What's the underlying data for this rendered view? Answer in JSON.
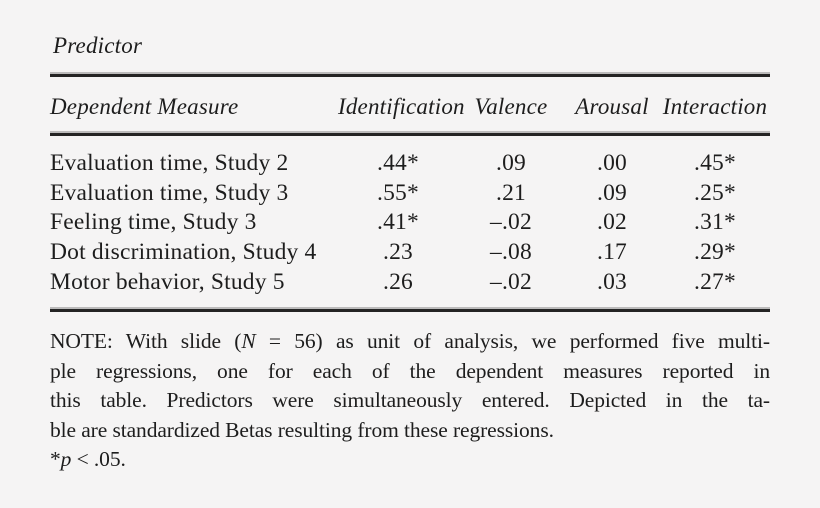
{
  "page": {
    "background_color": "#f5f4f4",
    "text_color": "#1d1d1d",
    "rule_color": "#242424"
  },
  "table": {
    "predictor_label": "Predictor",
    "columns": [
      "Dependent Measure",
      "Identification",
      "Valence",
      "Arousal",
      "Interaction"
    ],
    "rows": [
      [
        "Evaluation time, Study 2",
        ".44*",
        ".09",
        ".00",
        ".45*"
      ],
      [
        "Evaluation time, Study 3",
        ".55*",
        ".21",
        ".09",
        ".25*"
      ],
      [
        "Feeling time, Study 3",
        ".41*",
        "–.02",
        ".02",
        ".31*"
      ],
      [
        "Dot discrimination, Study 4",
        ".23",
        "–.08",
        ".17",
        ".29*"
      ],
      [
        "Motor behavior, Study 5",
        ".26",
        "–.02",
        ".03",
        ".27*"
      ]
    ]
  },
  "note": {
    "line1_pre": "NOTE: With slide (",
    "line1_n": "N",
    "line1_post": " = 56) as unit of analysis, we performed five multi-",
    "line2": "ple regressions, one for each of the dependent measures reported in",
    "line3": "this table. Predictors were simultaneously entered. Depicted in the ta-",
    "line4": "ble are standardized Betas resulting from these regressions.",
    "sig_star": "*",
    "sig_p": "p",
    "sig_rest": " < .05."
  }
}
